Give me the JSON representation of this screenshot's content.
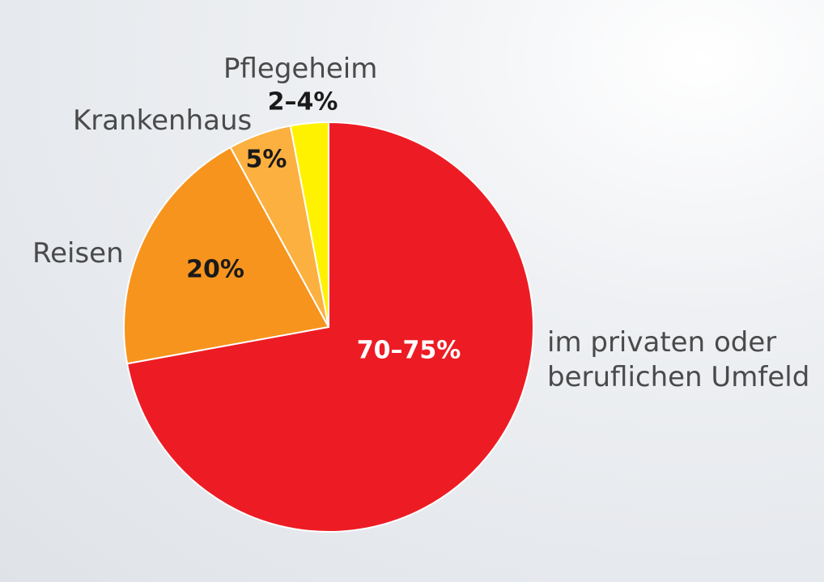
{
  "chart_data": {
    "type": "pie",
    "start_angle": "12 o'clock",
    "direction": "clockwise",
    "slices": [
      {
        "label": "im privaten oder\nberuflichen Umfeld",
        "value": 72.5,
        "display": "70–75%",
        "color": "#ed1c24",
        "label_color": "#ffffff"
      },
      {
        "label": "Reisen",
        "value": 20,
        "display": "20%",
        "color": "#f7941d",
        "label_color": "#1a1a1a"
      },
      {
        "label": "Krankenhaus",
        "value": 5,
        "display": "5%",
        "color": "#fbb040",
        "label_color": "#1a1a1a"
      },
      {
        "label": "Pflegeheim",
        "value": 3,
        "display": "2–4%",
        "color": "#fff200",
        "label_color": "#1a1a1a"
      }
    ]
  }
}
